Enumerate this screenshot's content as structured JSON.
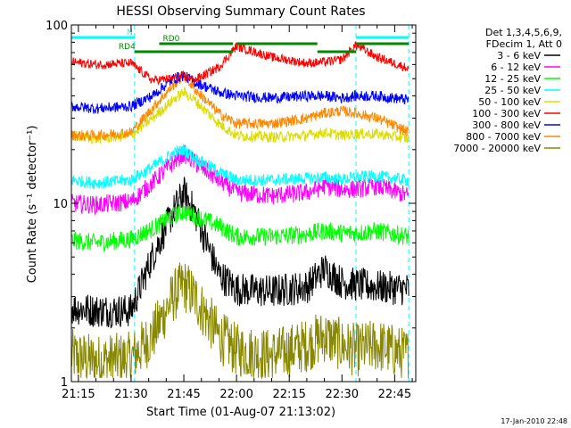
{
  "chart_data": {
    "type": "line",
    "title": "HESSI Observing Summary Count Rates",
    "xlabel": "Start Time (01-Aug-07 21:13:02)",
    "ylabel": "Count Rate (s⁻¹ detector⁻¹)",
    "yscale": "log",
    "ylim": [
      1,
      100
    ],
    "y_tick_labels": [
      "1",
      "10",
      "100"
    ],
    "xlim": [
      "21:13",
      "22:51"
    ],
    "x_tick_labels": [
      "21:15",
      "21:30",
      "21:45",
      "22:00",
      "22:15",
      "22:30",
      "22:45"
    ],
    "date_stamp": "17-Jan-2010 22:48",
    "legend": {
      "placement": "right",
      "header": [
        "Det 1,3,4,5,6,9,",
        "FDecim 1, Att 0"
      ],
      "entries": [
        {
          "label": "3 - 6 keV",
          "color": "#000000"
        },
        {
          "label": "6 - 12 keV",
          "color": "#ff00ff"
        },
        {
          "label": "12 - 25 keV",
          "color": "#00ff00"
        },
        {
          "label": "25 - 50 keV",
          "color": "#00ffff"
        },
        {
          "label": "50 - 100 keV",
          "color": "#dddd00"
        },
        {
          "label": "100 - 300 keV",
          "color": "#ff0000"
        },
        {
          "label": "300 - 800 keV",
          "color": "#0000ff"
        },
        {
          "label": "800 - 7000 keV",
          "color": "#ff8800"
        },
        {
          "label": "7000 - 20000 keV",
          "color": "#888800"
        }
      ]
    },
    "flags": [
      {
        "label": "N",
        "color": "#00ffff",
        "segments": [
          [
            "21:13",
            "21:31"
          ],
          [
            "22:34",
            "22:49"
          ]
        ]
      },
      {
        "label": "RD0",
        "color": "#008800",
        "segments": [
          [
            "21:38",
            "21:59"
          ],
          [
            "22:00",
            "22:23"
          ],
          [
            "22:34",
            "22:49"
          ]
        ]
      },
      {
        "label": "RD4",
        "color": "#008800",
        "segments": [
          [
            "21:31",
            "21:59"
          ],
          [
            "22:23",
            "22:34"
          ]
        ]
      }
    ],
    "shaded_boundaries": [
      "21:13",
      "21:31",
      "22:34",
      "22:49"
    ],
    "series": [
      {
        "name": "3 - 6 keV",
        "color": "#000000",
        "x": [
          "21:13",
          "21:20",
          "21:30",
          "21:36",
          "21:42",
          "21:45",
          "21:48",
          "21:55",
          "22:00",
          "22:10",
          "22:20",
          "22:25",
          "22:30",
          "22:34",
          "22:40",
          "22:49"
        ],
        "y": [
          2.6,
          2.5,
          2.5,
          5,
          9,
          11.5,
          9,
          4,
          3.3,
          3.2,
          3.4,
          4.3,
          3.6,
          3.5,
          3.4,
          3.3
        ]
      },
      {
        "name": "6 - 12 keV",
        "color": "#ff00ff",
        "x": [
          "21:13",
          "21:20",
          "21:30",
          "21:36",
          "21:42",
          "21:45",
          "21:48",
          "21:55",
          "22:00",
          "22:10",
          "22:20",
          "22:25",
          "22:30",
          "22:34",
          "22:40",
          "22:49"
        ],
        "y": [
          10,
          9.8,
          10.2,
          13,
          17,
          19,
          17,
          13.5,
          11.5,
          11,
          11.5,
          12.5,
          12,
          12,
          12.5,
          11
        ]
      },
      {
        "name": "12 - 25 keV",
        "color": "#00ff00",
        "x": [
          "21:13",
          "21:20",
          "21:30",
          "21:36",
          "21:42",
          "21:45",
          "21:48",
          "21:55",
          "22:00",
          "22:10",
          "22:20",
          "22:25",
          "22:30",
          "22:34",
          "22:40",
          "22:49"
        ],
        "y": [
          6.2,
          6,
          6.3,
          7.2,
          8.5,
          9,
          8.5,
          7.5,
          6.5,
          6.5,
          6.7,
          7,
          6.8,
          6.8,
          7,
          6.5
        ]
      },
      {
        "name": "25 - 50 keV",
        "color": "#00ffff",
        "x": [
          "21:13",
          "21:20",
          "21:30",
          "21:36",
          "21:42",
          "21:45",
          "21:48",
          "21:55",
          "22:00",
          "22:10",
          "22:20",
          "22:25",
          "22:30",
          "22:34",
          "22:40",
          "22:49"
        ],
        "y": [
          13.5,
          13,
          13.5,
          16,
          19,
          20,
          18,
          15,
          13.5,
          13.5,
          13.8,
          14,
          13.6,
          14,
          14.2,
          13.4
        ]
      },
      {
        "name": "50 - 100 keV",
        "color": "#dddd00",
        "x": [
          "21:13",
          "21:20",
          "21:30",
          "21:36",
          "21:42",
          "21:45",
          "21:48",
          "21:55",
          "22:00",
          "22:10",
          "22:20",
          "22:25",
          "22:30",
          "22:34",
          "22:40",
          "22:49"
        ],
        "y": [
          24,
          23,
          24,
          30,
          38,
          42,
          38,
          28,
          24,
          23.5,
          24,
          25,
          24,
          24.5,
          24.5,
          23
        ]
      },
      {
        "name": "100 - 300 keV",
        "color": "#ff0000",
        "x": [
          "21:13",
          "21:20",
          "21:30",
          "21:36",
          "21:42",
          "21:45",
          "21:48",
          "21:55",
          "22:00",
          "22:10",
          "22:20",
          "22:25",
          "22:30",
          "22:34",
          "22:40",
          "22:49"
        ],
        "y": [
          62,
          60,
          61,
          49,
          50,
          52,
          49,
          58,
          76,
          66,
          61,
          62,
          64,
          77,
          66,
          57
        ]
      },
      {
        "name": "300 - 800 keV",
        "color": "#0000ff",
        "x": [
          "21:13",
          "21:20",
          "21:30",
          "21:36",
          "21:42",
          "21:45",
          "21:48",
          "21:55",
          "22:00",
          "22:10",
          "22:20",
          "22:25",
          "22:30",
          "22:34",
          "22:40",
          "22:49"
        ],
        "y": [
          35,
          34,
          35,
          40,
          50,
          52,
          48,
          42,
          40,
          39,
          40,
          40,
          39,
          40,
          40,
          38
        ]
      },
      {
        "name": "800 - 7000 keV",
        "color": "#ff8800",
        "x": [
          "21:13",
          "21:20",
          "21:30",
          "21:36",
          "21:42",
          "21:45",
          "21:48",
          "21:55",
          "22:00",
          "22:10",
          "22:20",
          "22:25",
          "22:30",
          "22:34",
          "22:40",
          "22:49"
        ],
        "y": [
          24,
          24,
          25,
          34,
          46,
          52,
          44,
          32,
          28,
          28,
          30,
          32,
          33,
          32,
          30,
          25
        ]
      },
      {
        "name": "7000 - 20000 keV",
        "color": "#888800",
        "x": [
          "21:13",
          "21:20",
          "21:30",
          "21:36",
          "21:42",
          "21:45",
          "21:48",
          "21:55",
          "22:00",
          "22:10",
          "22:20",
          "22:25",
          "22:30",
          "22:34",
          "22:40",
          "22:49"
        ],
        "y": [
          1.4,
          1.3,
          1.35,
          1.8,
          3,
          3.5,
          3,
          1.8,
          1.5,
          1.4,
          1.6,
          1.8,
          1.6,
          1.5,
          1.6,
          1.4
        ]
      }
    ]
  }
}
